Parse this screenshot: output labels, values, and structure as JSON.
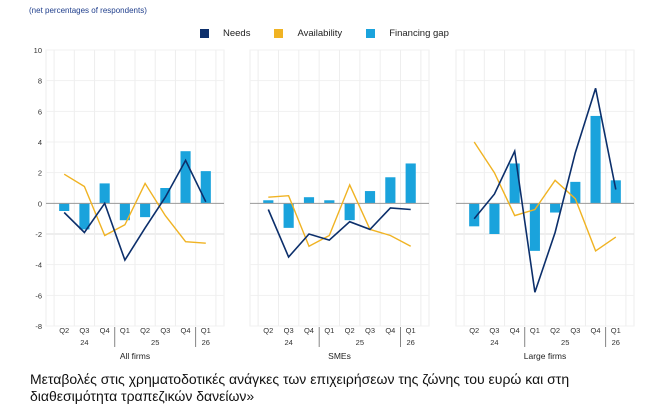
{
  "subtitle": "(net percentages of respondents)",
  "legend": [
    {
      "name": "Needs",
      "color": "#0c2f6b"
    },
    {
      "name": "Availability",
      "color": "#f0b323"
    },
    {
      "name": "Financing gap",
      "color": "#1aa3dc"
    }
  ],
  "caption": "Μεταβολές στις χρηματοδοτικές ανάγκες των επιχειρήσεων της ζώνης του ευρώ και στη διαθεσιμότητα τραπεζικών δανείων»",
  "chart_data": {
    "type": "bar",
    "ylim": [
      -8,
      10
    ],
    "yticks": [
      10,
      8,
      6,
      4,
      2,
      0,
      -2,
      -4,
      -6,
      -8
    ],
    "grid": true,
    "legend_position": "top-center",
    "categories": [
      "Q2",
      "Q3",
      "Q4",
      "Q1",
      "Q2",
      "Q3",
      "Q4",
      "Q1"
    ],
    "year_groups": [
      {
        "label": "24",
        "count": 3
      },
      {
        "label": "25",
        "count": 4
      },
      {
        "label": "26",
        "count": 1
      }
    ],
    "panels": [
      {
        "title": "All firms",
        "series": [
          {
            "name": "Financing gap",
            "type": "bar",
            "values": [
              -0.5,
              -1.7,
              1.3,
              -1.1,
              -0.9,
              1.0,
              3.4,
              2.1
            ]
          },
          {
            "name": "Needs",
            "type": "line",
            "values": [
              -0.6,
              -1.9,
              0.0,
              -3.7,
              -1.6,
              0.4,
              2.8,
              0.1
            ]
          },
          {
            "name": "Availability",
            "type": "line",
            "values": [
              1.9,
              1.1,
              -2.1,
              -1.4,
              1.3,
              -0.8,
              -2.5,
              -2.6
            ]
          }
        ]
      },
      {
        "title": "SMEs",
        "series": [
          {
            "name": "Financing gap",
            "type": "bar",
            "values": [
              0.2,
              -1.6,
              0.4,
              0.2,
              -1.1,
              0.8,
              1.7,
              2.6
            ]
          },
          {
            "name": "Needs",
            "type": "line",
            "values": [
              -0.4,
              -3.5,
              -2.0,
              -2.4,
              -1.2,
              -1.7,
              -0.3,
              -0.4
            ]
          },
          {
            "name": "Availability",
            "type": "line",
            "values": [
              0.4,
              0.5,
              -2.8,
              -2.1,
              1.2,
              -1.7,
              -2.1,
              -2.8
            ]
          }
        ]
      },
      {
        "title": "Large firms",
        "series": [
          {
            "name": "Financing gap",
            "type": "bar",
            "values": [
              -1.5,
              -2.0,
              2.6,
              -3.1,
              -0.6,
              1.4,
              5.7,
              1.5
            ]
          },
          {
            "name": "Needs",
            "type": "line",
            "values": [
              -1.0,
              0.6,
              3.4,
              -5.8,
              -1.9,
              3.3,
              7.5,
              0.9
            ]
          },
          {
            "name": "Availability",
            "type": "line",
            "values": [
              4.0,
              2.0,
              -0.8,
              -0.4,
              1.5,
              0.3,
              -3.1,
              -2.2
            ]
          }
        ]
      }
    ]
  }
}
